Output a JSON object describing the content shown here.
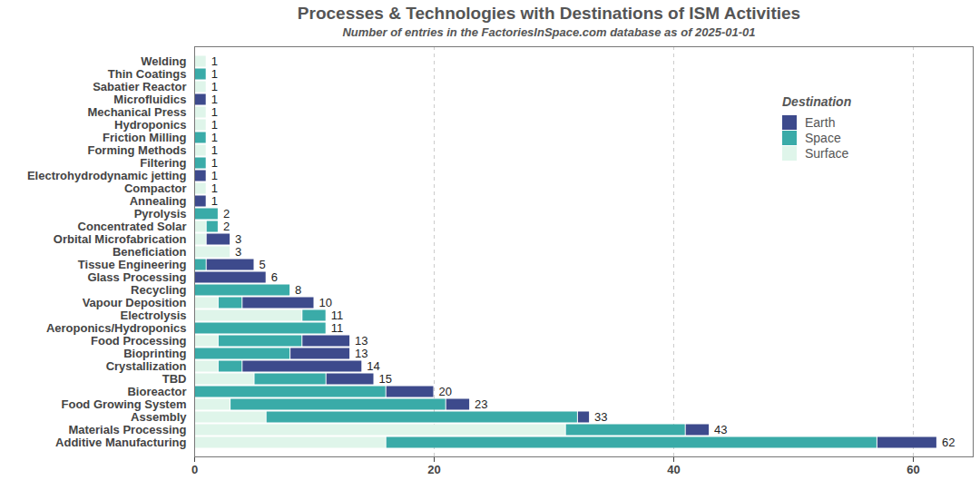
{
  "chart_data": {
    "type": "bar",
    "title": "Processes & Technologies with Destinations of ISM Activities",
    "subtitle": "Number of entries in the FactoriesInSpace.com database as of 2025-01-01",
    "orientation": "horizontal",
    "stacked": true,
    "grid": true,
    "legend": "top-right",
    "legend_title": "Destination",
    "categories": [
      "Welding",
      "Thin Coatings",
      "Sabatier Reactor",
      "Microfluidics",
      "Mechanical Press",
      "Hydroponics",
      "Friction Milling",
      "Forming Methods",
      "Filtering",
      "Electrohydrodynamic jetting",
      "Compactor",
      "Annealing",
      "Pyrolysis",
      "Concentrated Solar",
      "Orbital Microfabrication",
      "Beneficiation",
      "Tissue Engineering",
      "Glass Processing",
      "Recycling",
      "Vapour Deposition",
      "Electrolysis",
      "Aeroponics/Hydroponics",
      "Food Processing",
      "Bioprinting",
      "Crystallization",
      "TBD",
      "Bioreactor",
      "Food Growing System",
      "Assembly",
      "Materials Processing",
      "Additive Manufacturing"
    ],
    "series": [
      {
        "name": "Earth",
        "color": "#3d4a8c",
        "values": [
          0,
          0,
          0,
          1,
          0,
          0,
          0,
          0,
          0,
          1,
          0,
          1,
          0,
          0,
          2,
          0,
          4,
          6,
          0,
          6,
          0,
          0,
          4,
          5,
          10,
          4,
          4,
          2,
          1,
          2,
          5
        ]
      },
      {
        "name": "Space",
        "color": "#3aaba8",
        "values": [
          0,
          1,
          0,
          0,
          0,
          0,
          1,
          0,
          1,
          0,
          0,
          0,
          2,
          1,
          0,
          0,
          1,
          0,
          8,
          2,
          2,
          11,
          7,
          8,
          2,
          6,
          16,
          18,
          26,
          10,
          41
        ]
      },
      {
        "name": "Surface",
        "color": "#dff5ea",
        "values": [
          1,
          0,
          1,
          0,
          1,
          1,
          0,
          1,
          0,
          0,
          1,
          0,
          0,
          1,
          1,
          3,
          0,
          0,
          0,
          2,
          9,
          0,
          2,
          0,
          2,
          5,
          0,
          3,
          6,
          31,
          16
        ]
      }
    ],
    "totals": [
      1,
      1,
      1,
      1,
      1,
      1,
      1,
      1,
      1,
      1,
      1,
      1,
      2,
      2,
      3,
      3,
      5,
      6,
      8,
      10,
      11,
      11,
      13,
      13,
      14,
      15,
      20,
      23,
      33,
      43,
      62
    ],
    "xlim": [
      0,
      65
    ],
    "xticks": [
      0,
      20,
      40,
      60
    ]
  }
}
